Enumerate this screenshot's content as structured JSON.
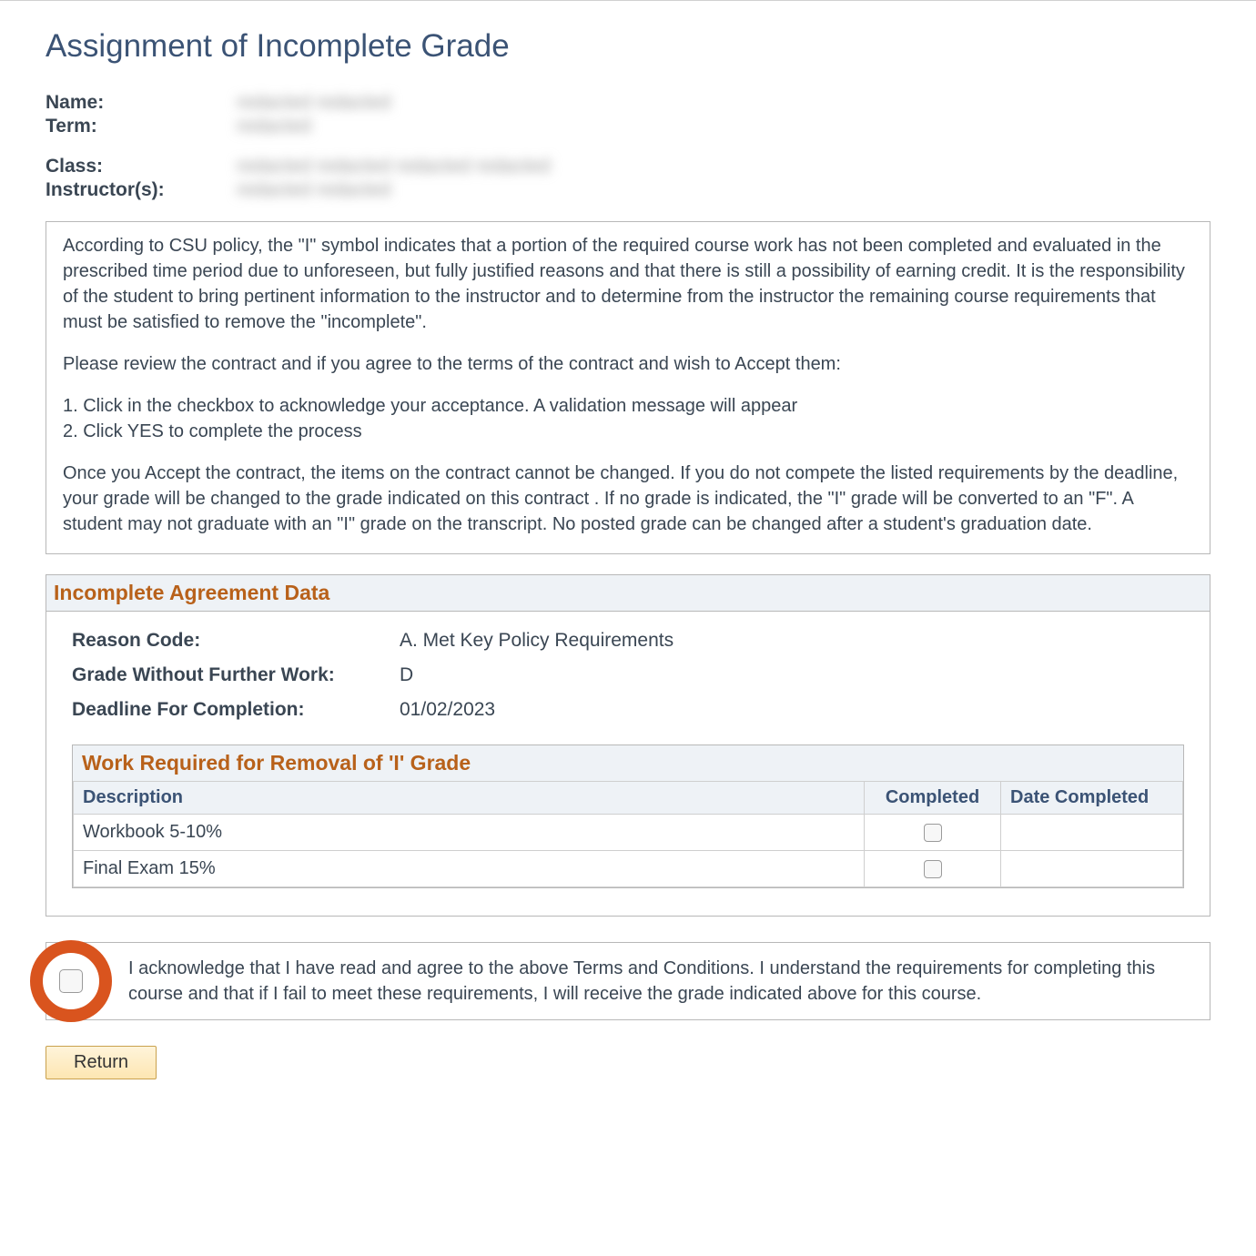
{
  "title": "Assignment of Incomplete Grade",
  "info": {
    "name_label": "Name:",
    "term_label": "Term:",
    "class_label": "Class:",
    "instructor_label": "Instructor(s):",
    "name_value": "redacted redacted",
    "term_value": "redacted",
    "class_value": "redacted redacted redacted redacted",
    "instructor_value": "redacted redacted"
  },
  "policy": {
    "p1": "According to CSU policy, the \"I\" symbol indicates that a portion of the required course work has not been completed and evaluated in the prescribed time period due to unforeseen, but fully justified reasons and that there is still a possibility of earning credit. It is the responsibility of the student to bring pertinent information to the instructor and to determine from the instructor the remaining course requirements that must be satisfied to remove the \"incomplete\".",
    "p2": "Please review the contract and if you agree to the terms of the contract and wish to Accept them:",
    "p3": "1. Click in the checkbox to acknowledge your acceptance. A validation message will appear",
    "p4": "2. Click YES to complete the process",
    "p5": "Once you Accept the contract, the items on the contract cannot be changed. If you do not compete the listed requirements by the deadline, your grade will be changed to the grade indicated on this contract .  If no grade is indicated, the \"I\" grade will be converted to an \"F\". A student may not graduate with an \"I\" grade on the transcript. No posted grade can be changed after a student's graduation date."
  },
  "agreement": {
    "section_title": "Incomplete Agreement Data",
    "reason_label": "Reason Code:",
    "reason_value": "A. Met Key Policy Requirements",
    "grade_label": "Grade Without Further Work:",
    "grade_value": "D",
    "deadline_label": "Deadline For Completion:",
    "deadline_value": "01/02/2023"
  },
  "work": {
    "title": "Work Required for Removal of 'I' Grade",
    "col_desc": "Description",
    "col_completed": "Completed",
    "col_date": "Date Completed",
    "rows": [
      {
        "desc": "Workbook 5-10%",
        "completed": false,
        "date": ""
      },
      {
        "desc": "Final Exam 15%",
        "completed": false,
        "date": ""
      }
    ]
  },
  "ack": {
    "text": "I acknowledge that I have read and agree to the above Terms and Conditions.  I understand the requirements for completing this course and that if I fail to meet these requirements, I will receive the grade indicated above for this course."
  },
  "buttons": {
    "return": "Return"
  }
}
